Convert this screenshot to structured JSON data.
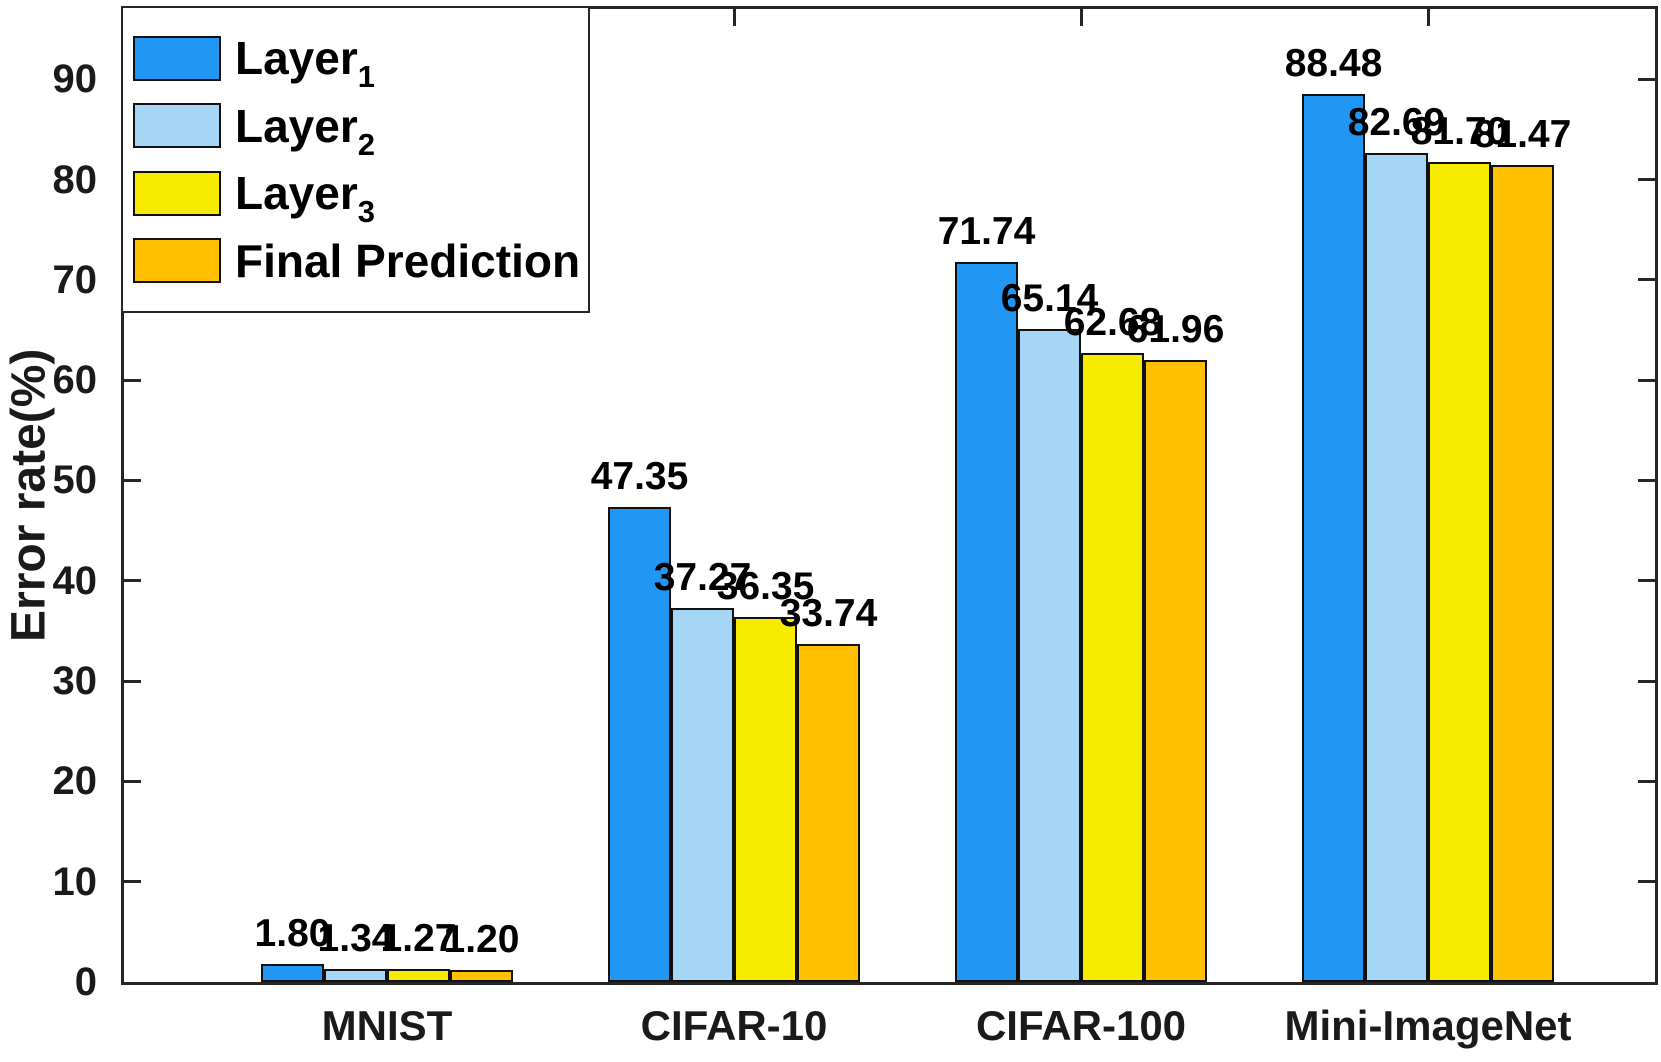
{
  "figure": {
    "background": "#ffffff",
    "axis_color": "#262626",
    "text_color": "#1a1a1a"
  },
  "chart_data": {
    "type": "bar",
    "title": "",
    "xlabel": "",
    "ylabel": "Error rate(%)",
    "categories": [
      "MNIST",
      "CIFAR-10",
      "CIFAR-100",
      "Mini-ImageNet"
    ],
    "series": [
      {
        "name": "Layer_1",
        "legend_base": "Layer",
        "legend_sub": "1",
        "color": "#2196F3",
        "values": [
          1.8,
          47.35,
          71.74,
          88.48
        ]
      },
      {
        "name": "Layer_2",
        "legend_base": "Layer",
        "legend_sub": "2",
        "color": "#A5D6F5",
        "values": [
          1.34,
          37.27,
          65.14,
          82.69
        ]
      },
      {
        "name": "Layer_3",
        "legend_base": "Layer",
        "legend_sub": "3",
        "color": "#F7EC00",
        "values": [
          1.27,
          36.35,
          62.68,
          81.7
        ]
      },
      {
        "name": "Final Prediction",
        "legend_base": "Final Prediction",
        "legend_sub": "",
        "color": "#FFC000",
        "values": [
          1.2,
          33.74,
          61.96,
          81.47
        ]
      }
    ],
    "yticks": [
      0,
      10,
      20,
      30,
      40,
      50,
      60,
      70,
      80,
      90
    ],
    "ylim": [
      0,
      97
    ],
    "grid": false,
    "legend_position": "top-left",
    "bar_edge_color": "#111111",
    "value_label_decimals": 2
  }
}
